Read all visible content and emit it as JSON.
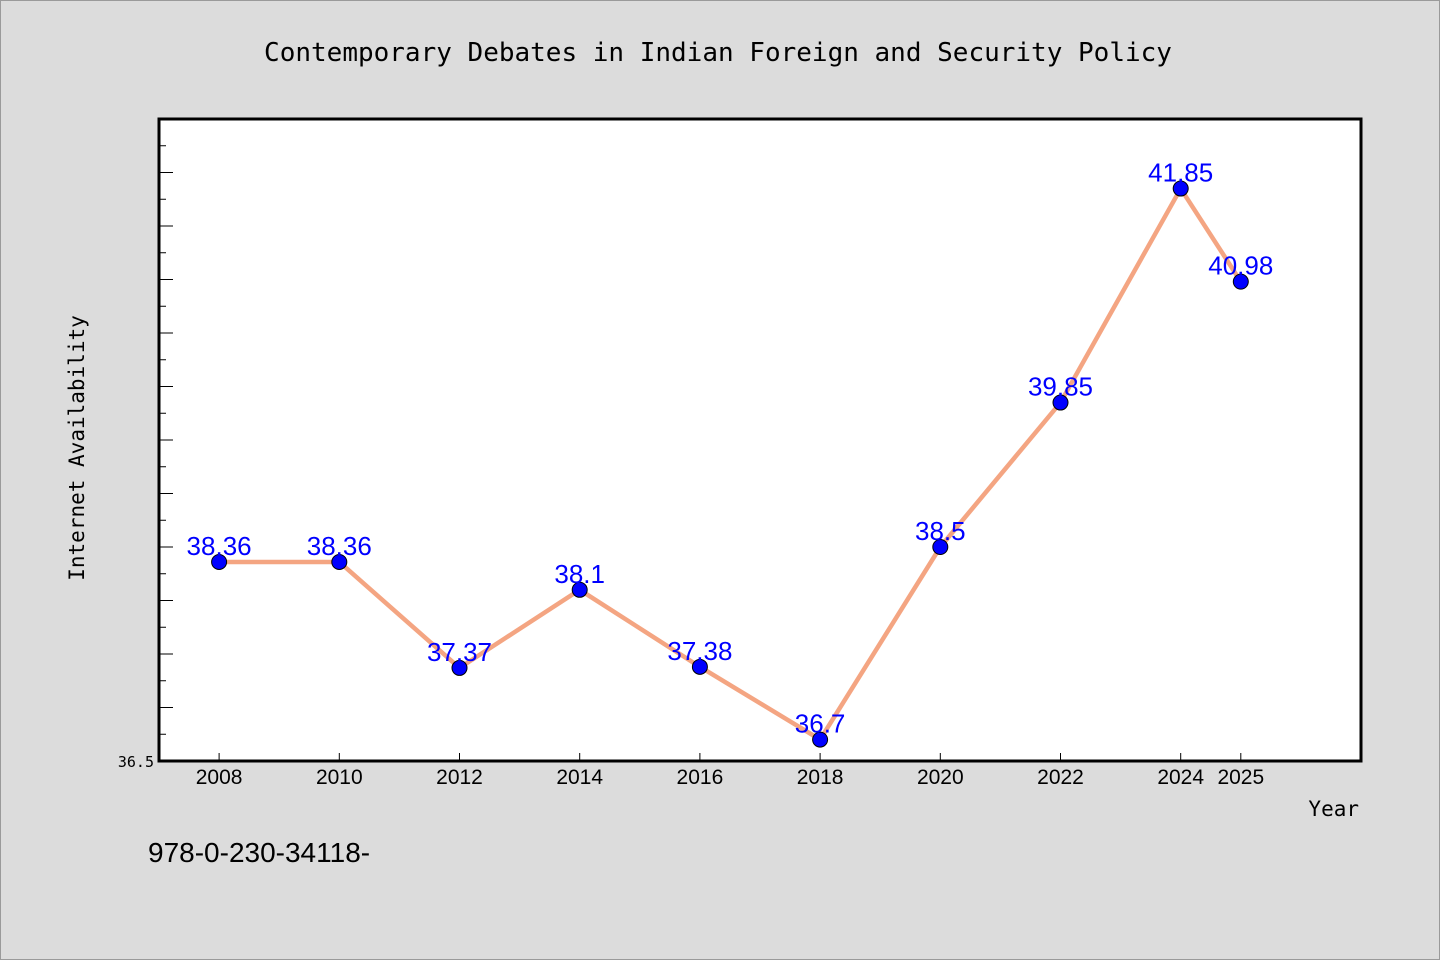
{
  "chart_data": {
    "type": "line",
    "title": "Contemporary Debates in Indian Foreign and Security Policy",
    "xlabel": "Year",
    "ylabel": "Internet Availability",
    "categories": [
      "2008",
      "2010",
      "2012",
      "2014",
      "2016",
      "2018",
      "2020",
      "2022",
      "2024",
      "2025"
    ],
    "series": [
      {
        "values": [
          38.36,
          38.36,
          37.37,
          38.1,
          37.38,
          36.7,
          38.5,
          39.85,
          41.85,
          40.98
        ],
        "labels": [
          "38.36",
          "38.36",
          "37.37",
          "38.1",
          "37.38",
          "36.7",
          "38.5",
          "39.85",
          "41.85",
          "40.98"
        ],
        "line_color": "#f4a582",
        "marker_color": "#0000ff"
      }
    ],
    "ylim": [
      36.5,
      42.5
    ],
    "ytick_labels": [
      "36.5"
    ],
    "grid": false,
    "footer": "978-0-230-34118-"
  }
}
